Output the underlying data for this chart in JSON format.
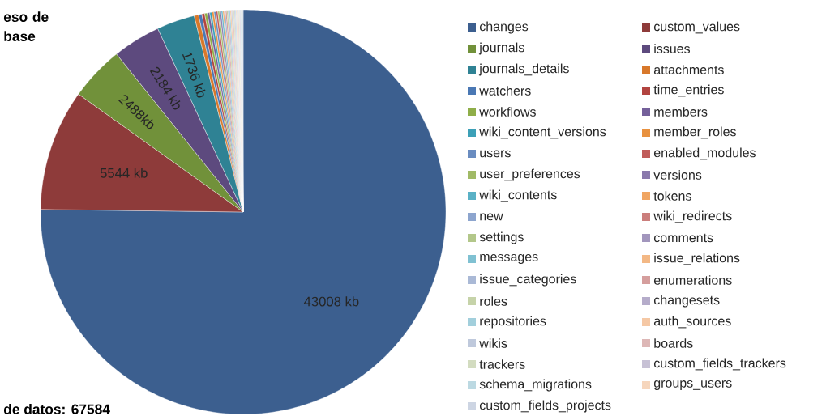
{
  "chart_data": {
    "type": "pie",
    "title": "eso de base",
    "annotations": [
      "de datos: 67584"
    ],
    "legend": "right",
    "categories": [
      "changes",
      "custom_values",
      "journals",
      "issues",
      "journals_details",
      "attachments",
      "watchers",
      "time_entries",
      "workflows",
      "members",
      "wiki_content_versions",
      "member_roles",
      "users",
      "enabled_modules",
      "user_preferences",
      "versions",
      "wiki_contents",
      "tokens",
      "new",
      "wiki_redirects",
      "settings",
      "comments",
      "messages",
      "issue_relations",
      "issue_categories",
      "enumerations",
      "roles",
      "changesets",
      "repositories",
      "auth_sources",
      "wikis",
      "boards",
      "trackers",
      "custom_fields_trackers",
      "schema_migrations",
      "groups_users",
      "custom_fields_projects"
    ],
    "values": [
      43008,
      5544,
      2488,
      2184,
      1736,
      200,
      150,
      130,
      120,
      110,
      100,
      95,
      90,
      85,
      80,
      75,
      70,
      65,
      60,
      55,
      55,
      50,
      50,
      50,
      45,
      45,
      45,
      40,
      40,
      40,
      40,
      40,
      40,
      40,
      40,
      40,
      40
    ],
    "value_labels": [
      "43008 kb",
      "5544 kb",
      "2488kb",
      "2184 kb",
      "1736 kb",
      null,
      null,
      null,
      null,
      null,
      null,
      null,
      null,
      null,
      null,
      null,
      null,
      null,
      null,
      null,
      null,
      null,
      null,
      null,
      null,
      null,
      null,
      null,
      null,
      null,
      null,
      null,
      null,
      null,
      null,
      null,
      null
    ],
    "colors": [
      "#3c5f8f",
      "#8e3b3a",
      "#71913a",
      "#5d4a7e",
      "#2f8294",
      "#d8782a",
      "#4a78b4",
      "#b24440",
      "#8fae49",
      "#74609a",
      "#3ca0b7",
      "#e8913f",
      "#6a8cc0",
      "#c05c5a",
      "#a1ba66",
      "#8a79ac",
      "#5ab1c6",
      "#f0a562",
      "#8da5ce",
      "#cb7e7c",
      "#b3c78a",
      "#a296bd",
      "#80c1d2",
      "#f3b885",
      "#aab9d6",
      "#d59e9d",
      "#c6d3a9",
      "#b5acca",
      "#a2cfdc",
      "#f5c8a5",
      "#bfc9dc",
      "#ddb7b6",
      "#d3dcc0",
      "#c7c1d5",
      "#bcd9e2",
      "#f6d6bd",
      "#cdd5e3"
    ]
  }
}
